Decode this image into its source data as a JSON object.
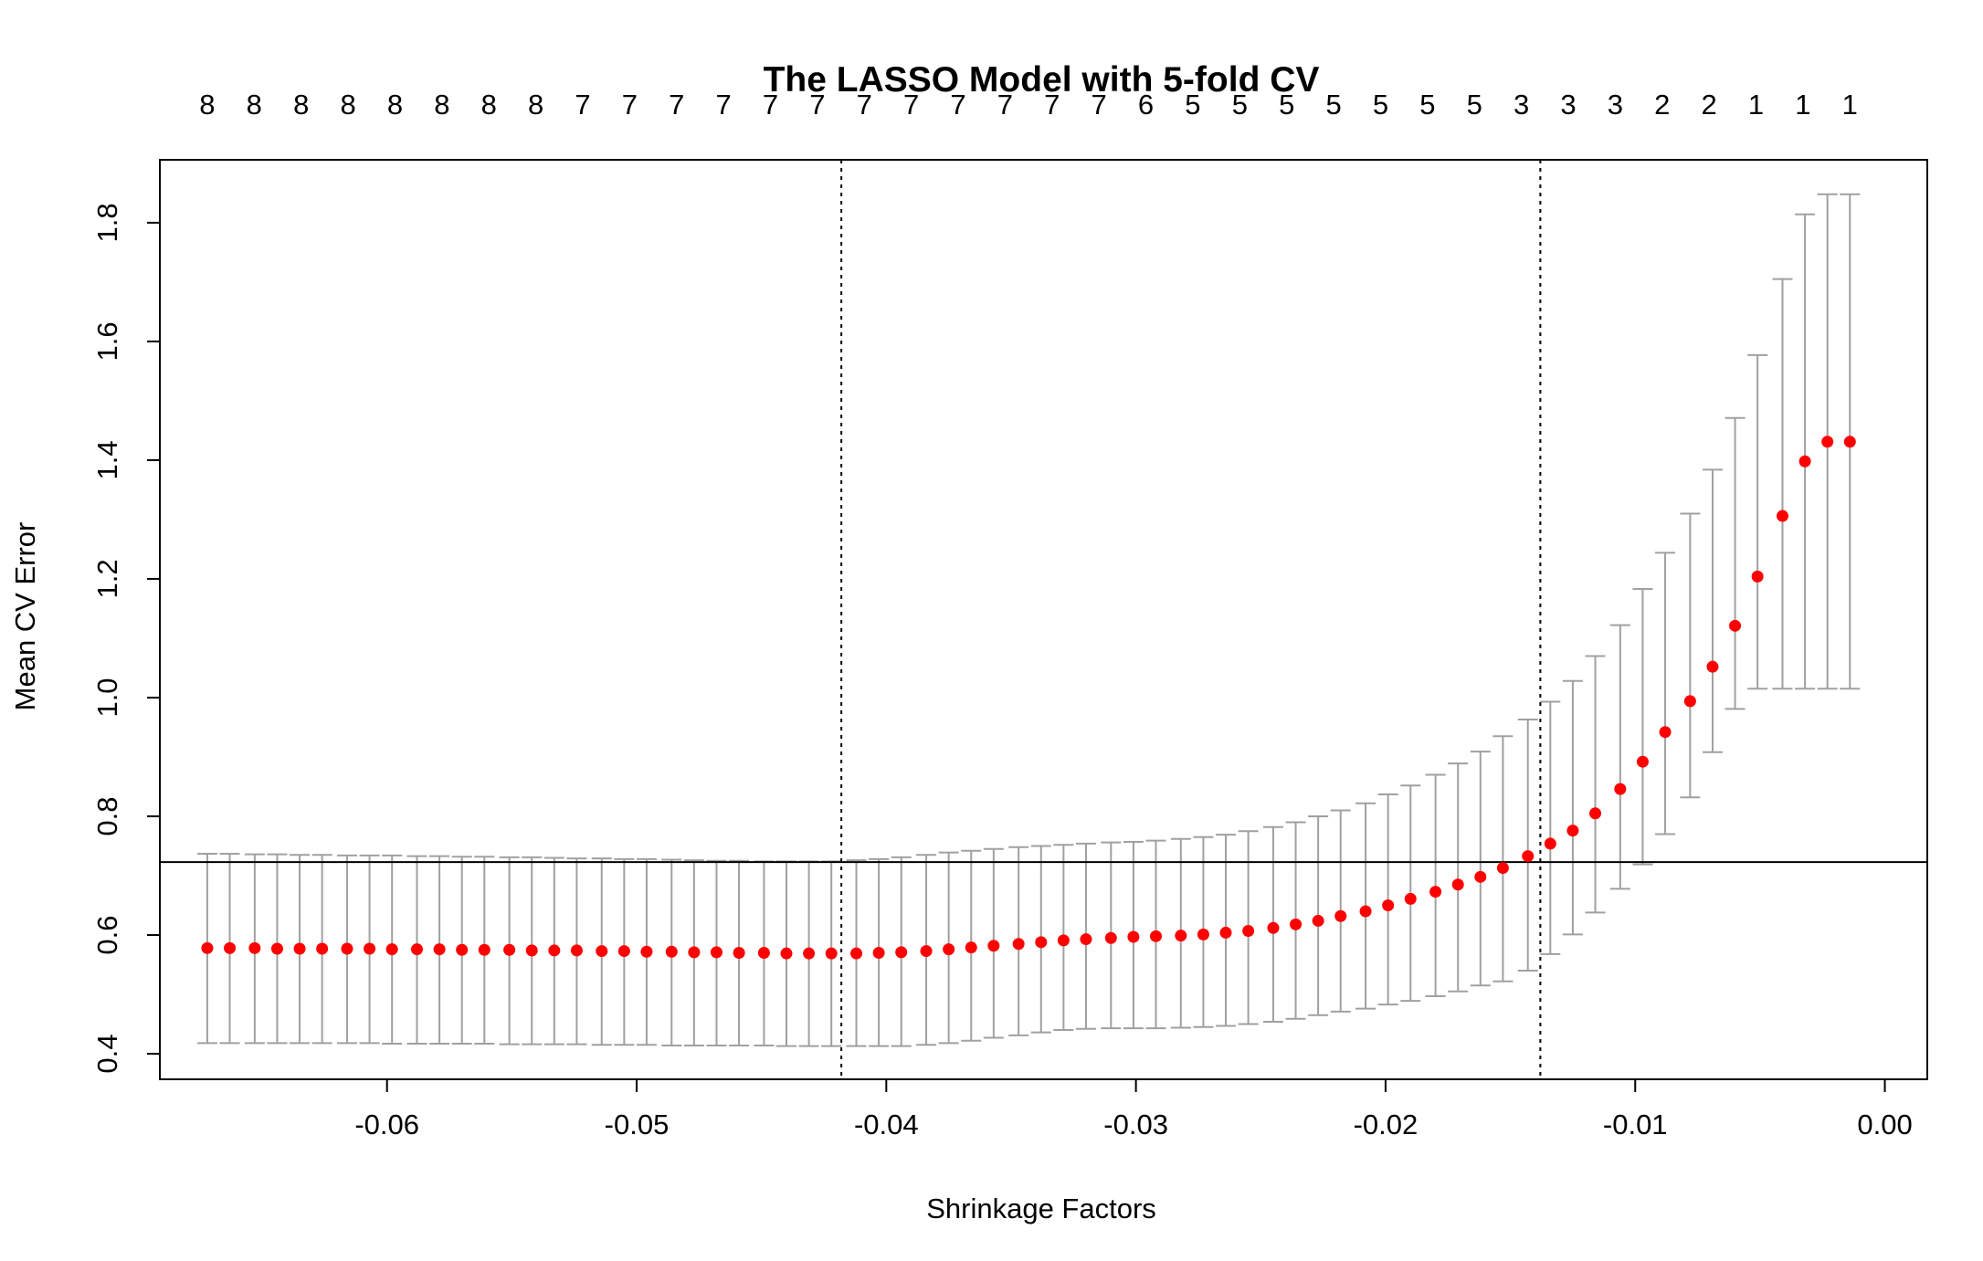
{
  "chart_data": {
    "type": "scatter",
    "title": "The LASSO Model with 5-fold CV",
    "xlabel": "Shrinkage Factors",
    "ylabel": "Mean CV Error",
    "xlim": [
      -0.0691,
      0.0017
    ],
    "ylim": [
      0.357,
      1.906
    ],
    "x_ticks": [
      -0.06,
      -0.05,
      -0.04,
      -0.03,
      -0.02,
      -0.01,
      0.0
    ],
    "x_tick_labels": [
      "-0.06",
      "-0.05",
      "-0.04",
      "-0.03",
      "-0.02",
      "-0.01",
      "0.00"
    ],
    "y_ticks": [
      0.4,
      0.6,
      0.8,
      1.0,
      1.2,
      1.4,
      1.6,
      1.8
    ],
    "y_tick_labels": [
      "0.4",
      "0.6",
      "0.8",
      "1.0",
      "1.2",
      "1.4",
      "1.6",
      "1.8"
    ],
    "grid": false,
    "legend": "none",
    "colors": {
      "points": "#ff0000",
      "error_bars": "#a0a0a0",
      "reference_lines": "#000000"
    },
    "top_axis_counts": [
      "8",
      "8",
      "8",
      "8",
      "8",
      "8",
      "8",
      "8",
      "7",
      "7",
      "7",
      "7",
      "7",
      "7",
      "7",
      "7",
      "7",
      "7",
      "7",
      "7",
      "6",
      "5",
      "5",
      "5",
      "5",
      "5",
      "5",
      "5",
      "3",
      "3",
      "3",
      "2",
      "2",
      "1",
      "1",
      "1"
    ],
    "x": [
      -0.0672,
      -0.0663,
      -0.0653,
      -0.0644,
      -0.0635,
      -0.0626,
      -0.0616,
      -0.0607,
      -0.0598,
      -0.0588,
      -0.0579,
      -0.057,
      -0.0561,
      -0.0551,
      -0.0542,
      -0.0533,
      -0.0524,
      -0.0514,
      -0.0505,
      -0.0496,
      -0.0486,
      -0.0477,
      -0.0468,
      -0.0459,
      -0.0449,
      -0.044,
      -0.0431,
      -0.0422,
      -0.0412,
      -0.0403,
      -0.0394,
      -0.0384,
      -0.0375,
      -0.0366,
      -0.0357,
      -0.0347,
      -0.0338,
      -0.0329,
      -0.032,
      -0.031,
      -0.0301,
      -0.0292,
      -0.0282,
      -0.0273,
      -0.0264,
      -0.0255,
      -0.0245,
      -0.0236,
      -0.0227,
      -0.0218,
      -0.0208,
      -0.0199,
      -0.019,
      -0.018,
      -0.0171,
      -0.0162,
      -0.0153,
      -0.0143,
      -0.0134,
      -0.0125,
      -0.0116,
      -0.0106,
      -0.0097,
      -0.0088,
      -0.0078,
      -0.0069,
      -0.006,
      -0.0051,
      -0.0041,
      -0.0032,
      -0.0023,
      -0.0014
    ],
    "mean": [
      0.578,
      0.578,
      0.578,
      0.577,
      0.577,
      0.577,
      0.577,
      0.577,
      0.576,
      0.576,
      0.576,
      0.575,
      0.575,
      0.575,
      0.574,
      0.574,
      0.574,
      0.573,
      0.573,
      0.572,
      0.572,
      0.571,
      0.571,
      0.57,
      0.57,
      0.569,
      0.569,
      0.569,
      0.569,
      0.57,
      0.571,
      0.573,
      0.576,
      0.579,
      0.582,
      0.585,
      0.588,
      0.591,
      0.593,
      0.595,
      0.597,
      0.598,
      0.599,
      0.601,
      0.604,
      0.607,
      0.612,
      0.618,
      0.624,
      0.632,
      0.64,
      0.65,
      0.661,
      0.673,
      0.685,
      0.698,
      0.713,
      0.733,
      0.754,
      0.776,
      0.805,
      0.846,
      0.892,
      0.942,
      0.994,
      1.052,
      1.121,
      1.204,
      1.306,
      1.398,
      1.431,
      1.431
    ],
    "upper": [
      0.737,
      0.737,
      0.736,
      0.736,
      0.735,
      0.735,
      0.734,
      0.734,
      0.734,
      0.733,
      0.733,
      0.732,
      0.732,
      0.731,
      0.731,
      0.73,
      0.729,
      0.729,
      0.728,
      0.728,
      0.727,
      0.726,
      0.725,
      0.725,
      0.724,
      0.724,
      0.724,
      0.724,
      0.726,
      0.728,
      0.731,
      0.735,
      0.739,
      0.742,
      0.745,
      0.748,
      0.75,
      0.752,
      0.754,
      0.756,
      0.757,
      0.759,
      0.762,
      0.765,
      0.769,
      0.775,
      0.782,
      0.79,
      0.8,
      0.81,
      0.822,
      0.837,
      0.852,
      0.87,
      0.889,
      0.909,
      0.935,
      0.963,
      0.993,
      1.028,
      1.07,
      1.122,
      1.183,
      1.244,
      1.31,
      1.384,
      1.471,
      1.577,
      1.705,
      1.814,
      1.848,
      1.848
    ],
    "lower": [
      0.418,
      0.418,
      0.418,
      0.418,
      0.418,
      0.418,
      0.418,
      0.418,
      0.417,
      0.417,
      0.417,
      0.417,
      0.417,
      0.416,
      0.416,
      0.416,
      0.416,
      0.415,
      0.415,
      0.415,
      0.414,
      0.414,
      0.414,
      0.414,
      0.414,
      0.413,
      0.413,
      0.413,
      0.413,
      0.413,
      0.413,
      0.415,
      0.418,
      0.422,
      0.427,
      0.431,
      0.436,
      0.44,
      0.442,
      0.443,
      0.443,
      0.443,
      0.444,
      0.445,
      0.447,
      0.45,
      0.454,
      0.459,
      0.465,
      0.471,
      0.476,
      0.483,
      0.489,
      0.497,
      0.505,
      0.515,
      0.522,
      0.54,
      0.568,
      0.601,
      0.638,
      0.678,
      0.719,
      0.77,
      0.832,
      0.908,
      0.981,
      1.015,
      1.015,
      1.015,
      1.015,
      1.015
    ],
    "hline": 0.723,
    "vlines": [
      -0.0418,
      -0.0138
    ]
  }
}
